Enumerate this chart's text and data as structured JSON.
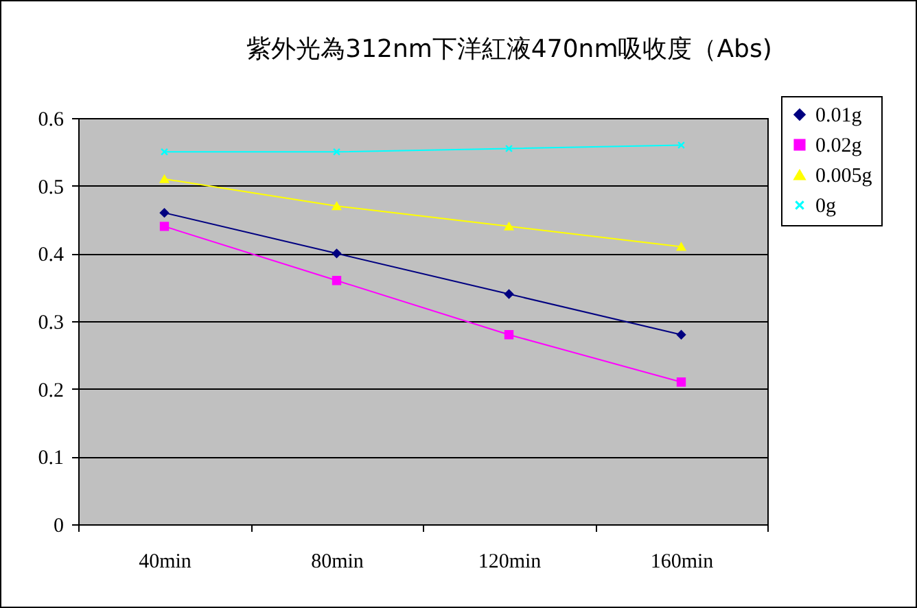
{
  "chart_data": {
    "type": "line",
    "title": "紫外光為312nm下洋紅液470nm吸收度（Abs)",
    "categories": [
      "40min",
      "80min",
      "120min",
      "160min"
    ],
    "series": [
      {
        "name": "0.01g",
        "color": "#000080",
        "marker": "diamond",
        "values": [
          0.46,
          0.4,
          0.34,
          0.28
        ]
      },
      {
        "name": "0.02g",
        "color": "#ff00ff",
        "marker": "square",
        "values": [
          0.44,
          0.36,
          0.28,
          0.21
        ]
      },
      {
        "name": "0.005g",
        "color": "#ffff00",
        "marker": "triangle",
        "values": [
          0.51,
          0.47,
          0.44,
          0.41
        ]
      },
      {
        "name": "0g",
        "color": "#00ffff",
        "marker": "cross",
        "values": [
          0.55,
          0.55,
          0.555,
          0.56
        ]
      }
    ],
    "ylim": [
      0,
      0.6
    ],
    "yticks": [
      0,
      0.1,
      0.2,
      0.3,
      0.4,
      0.5,
      0.6
    ],
    "grid": "y",
    "legend": "right"
  }
}
